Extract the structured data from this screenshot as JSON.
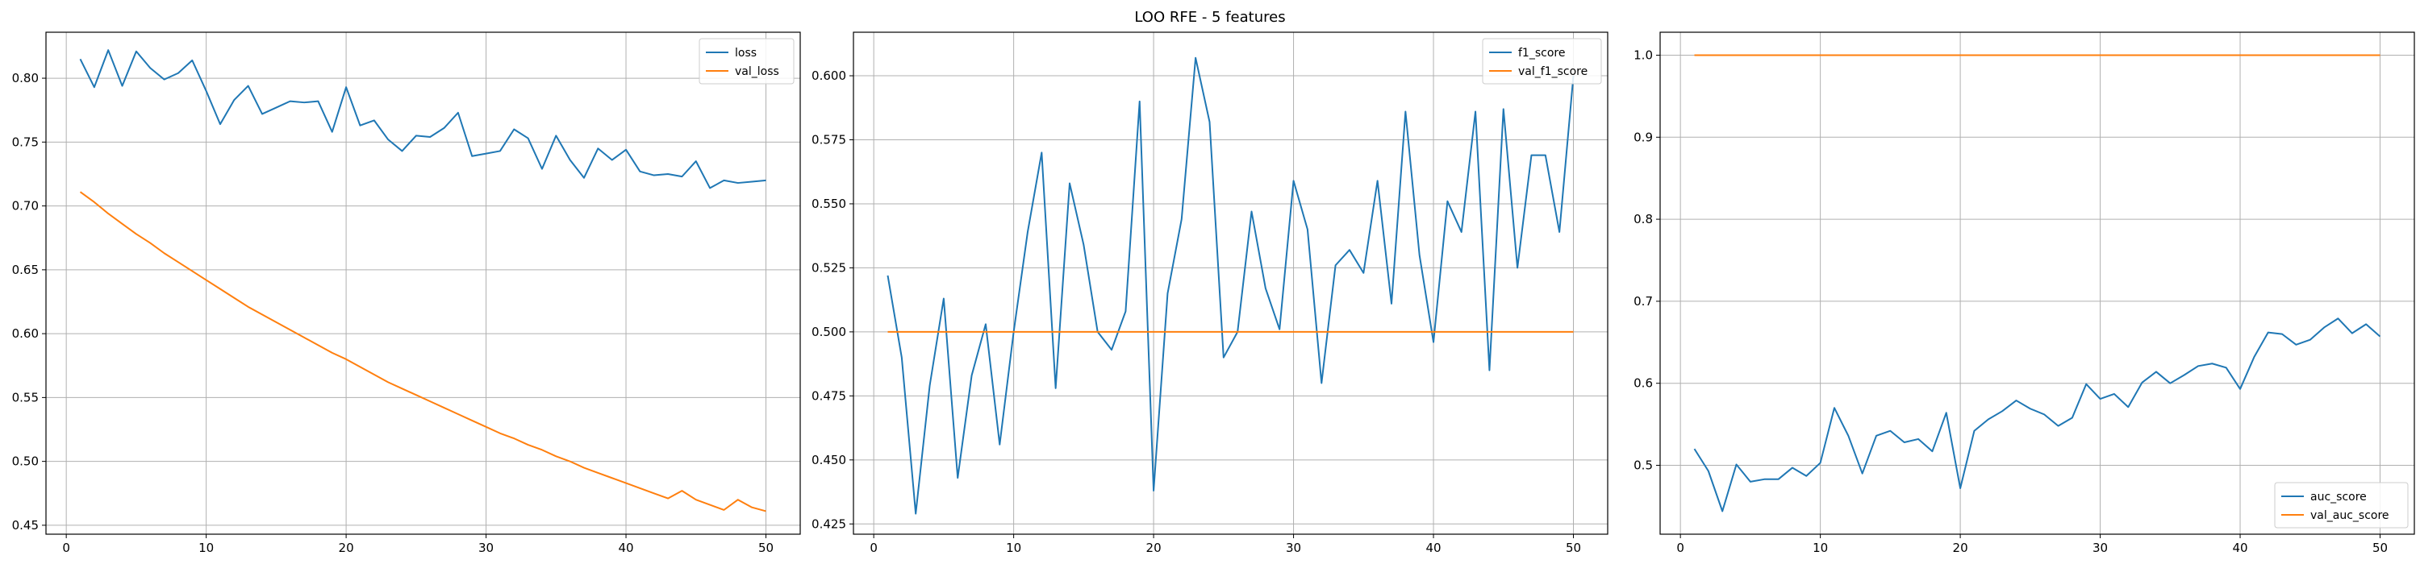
{
  "figure": {
    "suptitle": "LOO RFE - 5 features"
  },
  "colors": {
    "blue": "#1f77b4",
    "orange": "#ff7f0e",
    "grid": "#b0b0b0",
    "axis": "#000000"
  },
  "chart_data": [
    {
      "type": "line",
      "x": [
        1,
        2,
        3,
        4,
        5,
        6,
        7,
        8,
        9,
        10,
        11,
        12,
        13,
        14,
        15,
        16,
        17,
        18,
        19,
        20,
        21,
        22,
        23,
        24,
        25,
        26,
        27,
        28,
        29,
        30,
        31,
        32,
        33,
        34,
        35,
        36,
        37,
        38,
        39,
        40,
        41,
        42,
        43,
        44,
        45,
        46,
        47,
        48,
        49,
        50
      ],
      "series": [
        {
          "name": "loss",
          "color": "#1f77b4",
          "values": [
            0.815,
            0.793,
            0.822,
            0.794,
            0.821,
            0.808,
            0.799,
            0.804,
            0.814,
            0.79,
            0.764,
            0.783,
            0.794,
            0.772,
            0.777,
            0.782,
            0.781,
            0.782,
            0.758,
            0.793,
            0.763,
            0.767,
            0.752,
            0.743,
            0.755,
            0.754,
            0.761,
            0.773,
            0.739,
            0.741,
            0.743,
            0.76,
            0.753,
            0.729,
            0.755,
            0.736,
            0.722,
            0.745,
            0.736,
            0.744,
            0.727,
            0.724,
            0.725,
            0.723,
            0.735,
            0.714,
            0.72,
            0.718,
            0.719,
            0.72
          ]
        },
        {
          "name": "val_loss",
          "color": "#ff7f0e",
          "values": [
            0.711,
            0.703,
            0.694,
            0.686,
            0.678,
            0.671,
            0.663,
            0.656,
            0.649,
            0.642,
            0.635,
            0.628,
            0.621,
            0.615,
            0.609,
            0.603,
            0.597,
            0.591,
            0.585,
            0.58,
            0.574,
            0.568,
            0.562,
            0.557,
            0.552,
            0.547,
            0.542,
            0.537,
            0.532,
            0.527,
            0.522,
            0.518,
            0.513,
            0.509,
            0.504,
            0.5,
            0.495,
            0.491,
            0.487,
            0.483,
            0.479,
            0.475,
            0.471,
            0.477,
            0.47,
            0.466,
            0.462,
            0.47,
            0.464,
            0.461
          ]
        }
      ],
      "xlim": [
        -1.45,
        52.45
      ],
      "ylim": [
        0.443,
        0.836
      ],
      "xticks": [
        0,
        10,
        20,
        30,
        40,
        50
      ],
      "yticks": [
        0.45,
        0.5,
        0.55,
        0.6,
        0.65,
        0.7,
        0.75,
        0.8
      ],
      "tick_decimals": 2,
      "grid": true,
      "legend": "upper right"
    },
    {
      "type": "line",
      "x": [
        1,
        2,
        3,
        4,
        5,
        6,
        7,
        8,
        9,
        10,
        11,
        12,
        13,
        14,
        15,
        16,
        17,
        18,
        19,
        20,
        21,
        22,
        23,
        24,
        25,
        26,
        27,
        28,
        29,
        30,
        31,
        32,
        33,
        34,
        35,
        36,
        37,
        38,
        39,
        40,
        41,
        42,
        43,
        44,
        45,
        46,
        47,
        48,
        49,
        50
      ],
      "series": [
        {
          "name": "f1_score",
          "color": "#1f77b4",
          "values": [
            0.522,
            0.49,
            0.429,
            0.479,
            0.513,
            0.443,
            0.483,
            0.503,
            0.456,
            0.5,
            0.539,
            0.57,
            0.478,
            0.558,
            0.534,
            0.5,
            0.493,
            0.508,
            0.59,
            0.438,
            0.515,
            0.544,
            0.607,
            0.582,
            0.49,
            0.5,
            0.547,
            0.517,
            0.501,
            0.559,
            0.54,
            0.48,
            0.526,
            0.532,
            0.523,
            0.559,
            0.511,
            0.586,
            0.53,
            0.496,
            0.551,
            0.539,
            0.586,
            0.485,
            0.587,
            0.525,
            0.569,
            0.569,
            0.539,
            0.6
          ]
        },
        {
          "name": "val_f1_score",
          "color": "#ff7f0e",
          "values": [
            0.5,
            0.5,
            0.5,
            0.5,
            0.5,
            0.5,
            0.5,
            0.5,
            0.5,
            0.5,
            0.5,
            0.5,
            0.5,
            0.5,
            0.5,
            0.5,
            0.5,
            0.5,
            0.5,
            0.5,
            0.5,
            0.5,
            0.5,
            0.5,
            0.5,
            0.5,
            0.5,
            0.5,
            0.5,
            0.5,
            0.5,
            0.5,
            0.5,
            0.5,
            0.5,
            0.5,
            0.5,
            0.5,
            0.5,
            0.5,
            0.5,
            0.5,
            0.5,
            0.5,
            0.5,
            0.5,
            0.5,
            0.5,
            0.5,
            0.5
          ]
        }
      ],
      "xlim": [
        -1.45,
        52.45
      ],
      "ylim": [
        0.421,
        0.617
      ],
      "xticks": [
        0,
        10,
        20,
        30,
        40,
        50
      ],
      "yticks": [
        0.425,
        0.45,
        0.475,
        0.5,
        0.525,
        0.55,
        0.575,
        0.6
      ],
      "tick_decimals": 3,
      "grid": true,
      "legend": "upper right"
    },
    {
      "type": "line",
      "x": [
        1,
        2,
        3,
        4,
        5,
        6,
        7,
        8,
        9,
        10,
        11,
        12,
        13,
        14,
        15,
        16,
        17,
        18,
        19,
        20,
        21,
        22,
        23,
        24,
        25,
        26,
        27,
        28,
        29,
        30,
        31,
        32,
        33,
        34,
        35,
        36,
        37,
        38,
        39,
        40,
        41,
        42,
        43,
        44,
        45,
        46,
        47,
        48,
        49,
        50
      ],
      "series": [
        {
          "name": "auc_score",
          "color": "#1f77b4",
          "values": [
            0.52,
            0.493,
            0.444,
            0.501,
            0.48,
            0.483,
            0.483,
            0.497,
            0.487,
            0.503,
            0.57,
            0.536,
            0.49,
            0.536,
            0.542,
            0.528,
            0.532,
            0.517,
            0.564,
            0.472,
            0.542,
            0.556,
            0.566,
            0.579,
            0.569,
            0.562,
            0.548,
            0.558,
            0.599,
            0.581,
            0.587,
            0.571,
            0.601,
            0.614,
            0.6,
            0.61,
            0.621,
            0.624,
            0.619,
            0.593,
            0.632,
            0.662,
            0.66,
            0.647,
            0.653,
            0.668,
            0.679,
            0.661,
            0.672,
            0.657
          ]
        },
        {
          "name": "val_auc_score",
          "color": "#ff7f0e",
          "values": [
            1.0,
            1.0,
            1.0,
            1.0,
            1.0,
            1.0,
            1.0,
            1.0,
            1.0,
            1.0,
            1.0,
            1.0,
            1.0,
            1.0,
            1.0,
            1.0,
            1.0,
            1.0,
            1.0,
            1.0,
            1.0,
            1.0,
            1.0,
            1.0,
            1.0,
            1.0,
            1.0,
            1.0,
            1.0,
            1.0,
            1.0,
            1.0,
            1.0,
            1.0,
            1.0,
            1.0,
            1.0,
            1.0,
            1.0,
            1.0,
            1.0,
            1.0,
            1.0,
            1.0,
            1.0,
            1.0,
            1.0,
            1.0,
            1.0,
            1.0
          ]
        }
      ],
      "xlim": [
        -1.45,
        52.45
      ],
      "ylim": [
        0.416,
        1.028
      ],
      "xticks": [
        0,
        10,
        20,
        30,
        40,
        50
      ],
      "yticks": [
        0.5,
        0.6,
        0.7,
        0.8,
        0.9,
        1.0
      ],
      "tick_decimals": 1,
      "grid": true,
      "legend": "lower right"
    }
  ]
}
